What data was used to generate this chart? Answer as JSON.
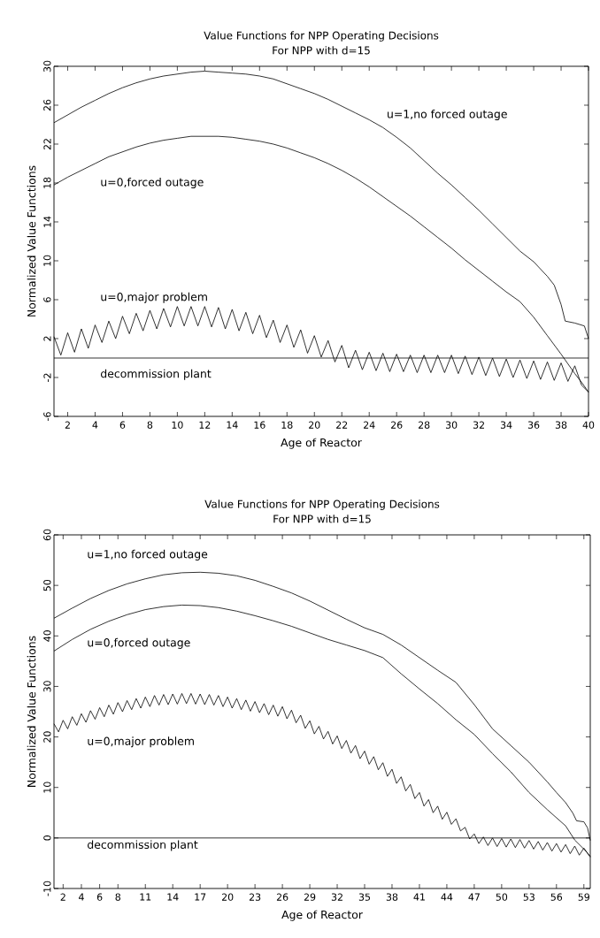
{
  "chart_data": [
    {
      "type": "line",
      "title": "Value Functions for NPP Operating Decisions",
      "subtitle": "For NPP with d=15",
      "xlabel": "Age of Reactor",
      "ylabel": "Normalized Value Functions",
      "xlim": [
        1,
        40
      ],
      "ylim": [
        -6,
        30
      ],
      "xticks": [
        2,
        4,
        6,
        8,
        10,
        12,
        14,
        16,
        18,
        20,
        22,
        24,
        26,
        28,
        30,
        32,
        34,
        36,
        38,
        40
      ],
      "yticks": [
        -6,
        -2,
        2,
        6,
        10,
        14,
        18,
        22,
        26,
        30
      ],
      "line_style": "solid",
      "marker": "none",
      "series": [
        {
          "name": "u=1,no forced outage",
          "color": "#000000",
          "x": [
            1,
            2,
            3,
            4,
            5,
            6,
            7,
            8,
            9,
            10,
            11,
            12,
            13,
            14,
            15,
            16,
            17,
            18,
            19,
            20,
            21,
            22,
            23,
            24,
            25,
            26,
            27,
            28,
            29,
            30,
            31,
            32,
            33,
            34,
            35,
            36,
            37,
            37.5,
            38,
            38.3,
            39,
            39.7,
            40
          ],
          "values": [
            24.2,
            25.0,
            25.8,
            26.5,
            27.2,
            27.8,
            28.3,
            28.7,
            29.0,
            29.2,
            29.4,
            29.5,
            29.4,
            29.3,
            29.2,
            29.0,
            28.7,
            28.2,
            27.7,
            27.2,
            26.6,
            25.9,
            25.2,
            24.5,
            23.7,
            22.7,
            21.6,
            20.3,
            19.0,
            17.8,
            16.5,
            15.2,
            13.8,
            12.4,
            11.0,
            9.9,
            8.4,
            7.5,
            5.5,
            3.8,
            3.6,
            3.3,
            2.0
          ]
        },
        {
          "name": "u=0,forced outage",
          "color": "#000000",
          "x": [
            1,
            2,
            3,
            4,
            5,
            6,
            7,
            8,
            9,
            10,
            11,
            12,
            13,
            14,
            15,
            16,
            17,
            18,
            19,
            20,
            21,
            22,
            23,
            24,
            25,
            26,
            27,
            28,
            29,
            30,
            31,
            32,
            33,
            34,
            35,
            36,
            37,
            38,
            39,
            39.5,
            40
          ],
          "values": [
            17.8,
            18.6,
            19.3,
            20.0,
            20.7,
            21.2,
            21.7,
            22.1,
            22.4,
            22.6,
            22.8,
            22.8,
            22.8,
            22.7,
            22.5,
            22.3,
            22.0,
            21.6,
            21.1,
            20.6,
            20.0,
            19.3,
            18.5,
            17.6,
            16.6,
            15.6,
            14.6,
            13.5,
            12.4,
            11.3,
            10.1,
            9.0,
            7.9,
            6.8,
            5.8,
            4.2,
            2.3,
            0.4,
            -1.6,
            -2.5,
            -3.5
          ]
        },
        {
          "name": "u=0,major problem",
          "color": "#000000",
          "x": [
            1,
            1.5,
            2,
            2.5,
            3,
            3.5,
            4,
            4.5,
            5,
            5.5,
            6,
            6.5,
            7,
            7.5,
            8,
            8.5,
            9,
            9.5,
            10,
            10.5,
            11,
            11.5,
            12,
            12.5,
            13,
            13.5,
            14,
            14.5,
            15,
            15.5,
            16,
            16.5,
            17,
            17.5,
            18,
            18.5,
            19,
            19.5,
            20,
            20.5,
            21,
            21.5,
            22,
            22.5,
            23,
            23.5,
            24,
            24.5,
            25,
            25.5,
            26,
            26.5,
            27,
            27.5,
            28,
            28.5,
            29,
            29.5,
            30,
            30.5,
            31,
            31.5,
            32,
            32.5,
            33,
            33.5,
            34,
            34.5,
            35,
            35.5,
            36,
            36.5,
            37,
            37.5,
            38,
            38.5,
            39,
            39.5,
            40
          ],
          "values": [
            2.2,
            0.3,
            2.6,
            0.6,
            3.0,
            1.0,
            3.4,
            1.6,
            3.8,
            2.0,
            4.3,
            2.5,
            4.6,
            2.8,
            4.9,
            3.0,
            5.1,
            3.2,
            5.3,
            3.3,
            5.3,
            3.3,
            5.3,
            3.2,
            5.2,
            3.0,
            5.0,
            2.8,
            4.7,
            2.5,
            4.4,
            2.1,
            3.9,
            1.6,
            3.4,
            1.1,
            2.9,
            0.5,
            2.3,
            0.1,
            1.8,
            -0.4,
            1.3,
            -1.0,
            0.8,
            -1.2,
            0.6,
            -1.3,
            0.5,
            -1.4,
            0.4,
            -1.4,
            0.3,
            -1.5,
            0.3,
            -1.5,
            0.3,
            -1.5,
            0.3,
            -1.6,
            0.2,
            -1.7,
            0.1,
            -1.8,
            0.0,
            -1.9,
            -0.1,
            -2.0,
            -0.2,
            -2.1,
            -0.3,
            -2.2,
            -0.4,
            -2.3,
            -0.5,
            -2.4,
            -0.8,
            -2.8,
            -3.5
          ]
        },
        {
          "name": "decommission plant",
          "color": "#000000",
          "x": [
            1,
            40
          ],
          "values": [
            0,
            0
          ]
        }
      ]
    },
    {
      "type": "line",
      "title": "Value Functions for NPP Operating Decisions",
      "subtitle": "For NPP with d=15",
      "xlabel": "Age of Reactor",
      "ylabel": "Normalized Value Functions",
      "xlim": [
        1,
        59.7
      ],
      "ylim": [
        -10,
        60
      ],
      "xticks": [
        2,
        4,
        6,
        8,
        11,
        14,
        17,
        20,
        23,
        26,
        29,
        32,
        35,
        38,
        41,
        44,
        47,
        50,
        53,
        56,
        59
      ],
      "yticks": [
        -10,
        0,
        10,
        20,
        30,
        40,
        50,
        60
      ],
      "line_style": "solid",
      "marker": "none",
      "series": [
        {
          "name": "u=1,no forced outage",
          "color": "#000000",
          "x": [
            1,
            3,
            5,
            7,
            9,
            11,
            13,
            15,
            17,
            19,
            21,
            23,
            25,
            27,
            29,
            31,
            33,
            35,
            37,
            39,
            41,
            43,
            45,
            47,
            49,
            51,
            53,
            55,
            56,
            57,
            57.8,
            58.2,
            59,
            59.4,
            59.7
          ],
          "values": [
            43.5,
            45.5,
            47.4,
            49.0,
            50.3,
            51.3,
            52.1,
            52.5,
            52.6,
            52.4,
            51.9,
            51.0,
            49.8,
            48.5,
            46.9,
            45.1,
            43.3,
            41.6,
            40.3,
            38.2,
            35.7,
            33.2,
            30.8,
            26.4,
            21.6,
            18.3,
            15.0,
            11.1,
            9.0,
            7.0,
            4.9,
            3.4,
            3.2,
            2.0,
            -0.5
          ]
        },
        {
          "name": "u=0,forced outage",
          "color": "#000000",
          "x": [
            1,
            3,
            5,
            7,
            9,
            11,
            13,
            15,
            17,
            19,
            21,
            23,
            25,
            27,
            29,
            31,
            33,
            35,
            37,
            39,
            41,
            43,
            45,
            47,
            49,
            51,
            53,
            55,
            57,
            58,
            59,
            59.7
          ],
          "values": [
            37.0,
            39.3,
            41.3,
            42.9,
            44.2,
            45.2,
            45.8,
            46.1,
            46.0,
            45.6,
            44.9,
            44.0,
            43.0,
            41.9,
            40.6,
            39.3,
            38.2,
            37.1,
            35.7,
            32.5,
            29.5,
            26.6,
            23.4,
            20.5,
            16.7,
            13.1,
            9.0,
            5.6,
            2.4,
            -0.4,
            -2.2,
            -3.6
          ]
        },
        {
          "name": "u=0,major problem",
          "color": "#000000",
          "x": [
            1,
            1.5,
            2,
            2.5,
            3,
            3.5,
            4,
            4.5,
            5,
            5.5,
            6,
            6.5,
            7,
            7.5,
            8,
            8.5,
            9,
            9.5,
            10,
            10.5,
            11,
            11.5,
            12,
            12.5,
            13,
            13.5,
            14,
            14.5,
            15,
            15.5,
            16,
            16.5,
            17,
            17.5,
            18,
            18.5,
            19,
            19.5,
            20,
            20.5,
            21,
            21.5,
            22,
            22.5,
            23,
            23.5,
            24,
            24.5,
            25,
            25.5,
            26,
            26.5,
            27,
            27.5,
            28,
            28.5,
            29,
            29.5,
            30,
            30.5,
            31,
            31.5,
            32,
            32.5,
            33,
            33.5,
            34,
            34.5,
            35,
            35.5,
            36,
            36.5,
            37,
            37.5,
            38,
            38.5,
            39,
            39.5,
            40,
            40.5,
            41,
            41.5,
            42,
            42.5,
            43,
            43.5,
            44,
            44.5,
            45,
            45.5,
            46,
            46.5,
            47,
            47.5,
            48,
            48.5,
            49,
            49.5,
            50,
            50.5,
            51,
            51.5,
            52,
            52.5,
            53,
            53.5,
            54,
            54.5,
            55,
            55.5,
            56,
            56.5,
            57,
            57.5,
            58,
            58.5,
            59,
            59.7
          ],
          "values": [
            22.6,
            21.0,
            23.3,
            21.6,
            24.0,
            22.3,
            24.6,
            22.9,
            25.2,
            23.5,
            25.8,
            24.0,
            26.3,
            24.5,
            26.8,
            25.0,
            27.2,
            25.4,
            27.6,
            25.7,
            27.9,
            26.0,
            28.2,
            26.3,
            28.4,
            26.4,
            28.5,
            26.5,
            28.6,
            26.6,
            28.6,
            26.5,
            28.5,
            26.4,
            28.4,
            26.3,
            28.2,
            26.0,
            27.9,
            25.7,
            27.6,
            25.4,
            27.3,
            25.1,
            27.0,
            24.8,
            26.6,
            24.4,
            26.3,
            24.1,
            26.0,
            23.6,
            25.3,
            22.8,
            24.3,
            21.7,
            23.2,
            20.6,
            22.1,
            19.6,
            21.1,
            18.6,
            20.2,
            17.7,
            19.3,
            16.8,
            18.3,
            15.7,
            17.2,
            14.6,
            16.1,
            13.5,
            14.9,
            12.2,
            13.6,
            10.8,
            12.1,
            9.3,
            10.6,
            7.8,
            9.0,
            6.3,
            7.6,
            5.0,
            6.3,
            3.7,
            5.1,
            2.7,
            3.8,
            1.4,
            2.1,
            -0.2,
            0.8,
            -1.1,
            0.2,
            -1.5,
            0.0,
            -1.7,
            -0.1,
            -1.8,
            -0.2,
            -1.9,
            -0.3,
            -2.0,
            -0.5,
            -2.2,
            -0.7,
            -2.4,
            -0.9,
            -2.6,
            -1.1,
            -2.8,
            -1.3,
            -3.1,
            -1.6,
            -3.4,
            -2.0,
            -3.8
          ]
        },
        {
          "name": "decommission plant",
          "color": "#000000",
          "x": [
            1,
            59.7
          ],
          "values": [
            0,
            0
          ]
        }
      ]
    }
  ]
}
